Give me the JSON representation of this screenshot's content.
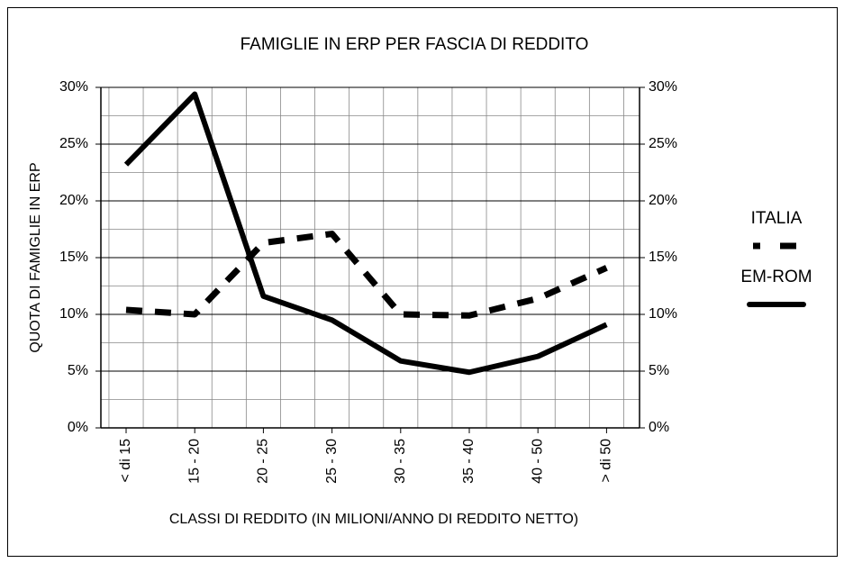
{
  "chart_data": {
    "type": "line",
    "title": "FAMIGLIE IN ERP PER FASCIA DI REDDITO",
    "x_label": "CLASSI DI REDDITO (IN MILIONI/ANNO DI REDDITO NETTO)",
    "y_label": "QUOTA DI FAMIGLIE IN ERP",
    "categories": [
      "< di 15",
      "15 - 20",
      "20 - 25",
      "25 - 30",
      "30 - 35",
      "35 - 40",
      "40 - 50",
      "> di 50"
    ],
    "series": [
      {
        "name": "ITALIA",
        "color": "#000000",
        "dash": true,
        "values": [
          10.4,
          10.0,
          16.3,
          17.1,
          10.0,
          9.9,
          11.4,
          14.1
        ]
      },
      {
        "name": "EM-ROM",
        "color": "#000000",
        "dash": false,
        "values": [
          23.2,
          29.4,
          11.6,
          9.5,
          5.9,
          4.9,
          6.3,
          9.1
        ]
      }
    ],
    "ylim": [
      0,
      30
    ],
    "yticks": [
      {
        "value": 0,
        "label": "0%"
      },
      {
        "value": 5,
        "label": "5%"
      },
      {
        "value": 10,
        "label": "10%"
      },
      {
        "value": 15,
        "label": "15%"
      },
      {
        "value": 20,
        "label": "20%"
      },
      {
        "value": 25,
        "label": "25%"
      },
      {
        "value": 30,
        "label": "30%"
      }
    ],
    "y2lim": [
      0,
      30
    ],
    "y2ticks": [
      {
        "value": 0,
        "label": "0%"
      },
      {
        "value": 5,
        "label": "5%"
      },
      {
        "value": 10,
        "label": "10%"
      },
      {
        "value": 15,
        "label": "15%"
      },
      {
        "value": 20,
        "label": "20%"
      },
      {
        "value": 25,
        "label": "25%"
      },
      {
        "value": 30,
        "label": "30%"
      }
    ],
    "grid": true,
    "legend": "right"
  }
}
